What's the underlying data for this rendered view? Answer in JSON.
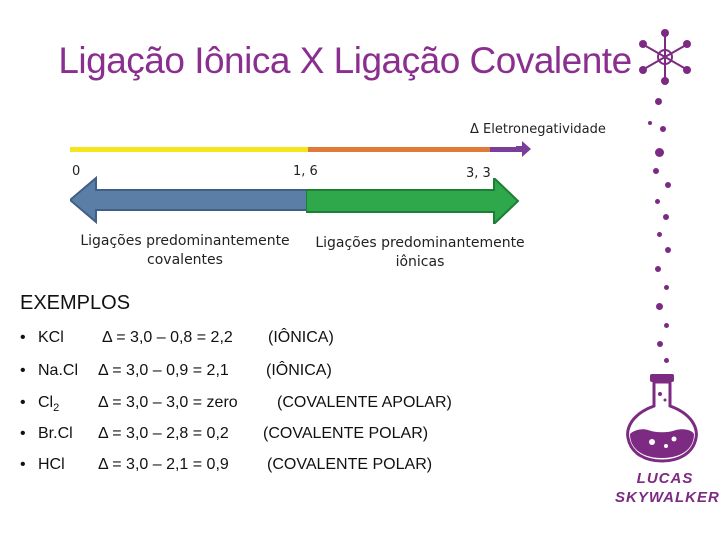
{
  "title": "Ligação Iônica X Ligação Covalente",
  "scale": {
    "delta_label": "Δ Eletronegatividade",
    "tick_0": "0",
    "tick_mid": "1, 6",
    "tick_max": "3, 3"
  },
  "regions": {
    "covalent": [
      "Ligações predominantemente",
      "covalentes"
    ],
    "ionic": [
      "Ligações predominantemente",
      "iônicas"
    ]
  },
  "examples": {
    "heading": "EXEMPLOS",
    "bullet": "•",
    "rows": [
      {
        "name": "KCl",
        "sub": "",
        "calc": "Δ = 3,0 – 0,8 = 2,2",
        "type": "(IÔNICA)"
      },
      {
        "name": "Na.Cl",
        "sub": "",
        "calc": "Δ = 3,0 – 0,9 = 2,1",
        "type": "(IÔNICA)"
      },
      {
        "name": "Cl",
        "sub": "2",
        "calc": "Δ = 3,0 – 3,0 = zero",
        "type": "(COVALENTE APOLAR)"
      },
      {
        "name": "Br.Cl",
        "sub": "",
        "calc": "Δ = 3,0 – 2,8 = 0,2",
        "type": "(COVALENTE POLAR)"
      },
      {
        "name": "HCl",
        "sub": "",
        "calc": "Δ = 3,0 – 2,1 = 0,9",
        "type": "(COVALENTE POLAR)"
      }
    ]
  },
  "logo": {
    "line1": "LUCAS",
    "line2": "SKYWALKER"
  },
  "colors": {
    "purple": "#7d2a83",
    "yellow": "#f5e51d",
    "orange": "#e0793a",
    "violet": "#7a3d9a",
    "steel_blue": "#5b7ea6",
    "green": "#2ea84a"
  }
}
